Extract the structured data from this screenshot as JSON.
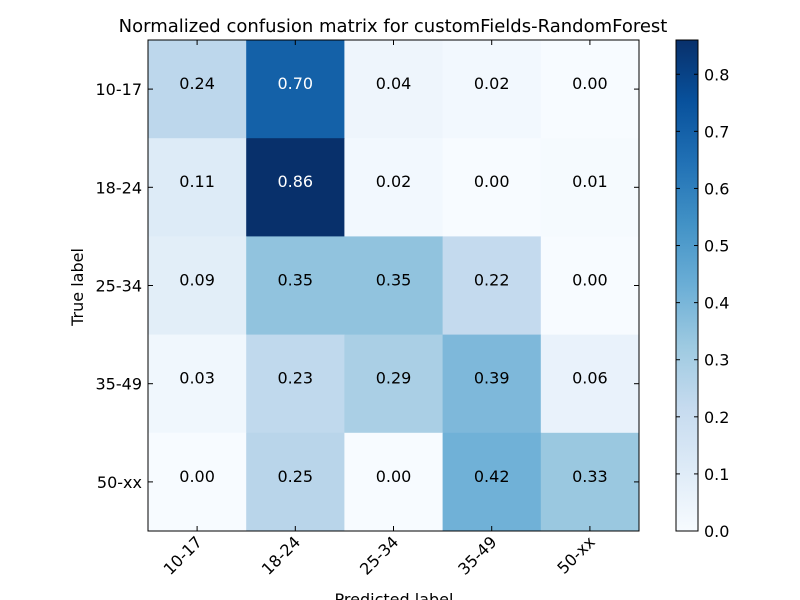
{
  "chart_data": {
    "type": "heatmap",
    "title": "Normalized confusion matrix for customFields-RandomForest",
    "xlabel": "Predicted label",
    "ylabel": "True label",
    "x_categories": [
      "10-17",
      "18-24",
      "25-34",
      "35-49",
      "50-xx"
    ],
    "y_categories": [
      "10-17",
      "18-24",
      "25-34",
      "35-49",
      "50-xx"
    ],
    "values": [
      [
        0.24,
        0.7,
        0.04,
        0.02,
        0.0
      ],
      [
        0.11,
        0.86,
        0.02,
        0.0,
        0.01
      ],
      [
        0.09,
        0.35,
        0.35,
        0.22,
        0.0
      ],
      [
        0.03,
        0.23,
        0.29,
        0.39,
        0.06
      ],
      [
        0.0,
        0.25,
        0.0,
        0.42,
        0.33
      ]
    ],
    "colorbar": {
      "ticks": [
        "0.0",
        "0.1",
        "0.2",
        "0.3",
        "0.4",
        "0.5",
        "0.6",
        "0.7",
        "0.8"
      ],
      "vmin": 0.0,
      "vmax": 0.86
    },
    "colormap": "Blues",
    "grid": false
  }
}
